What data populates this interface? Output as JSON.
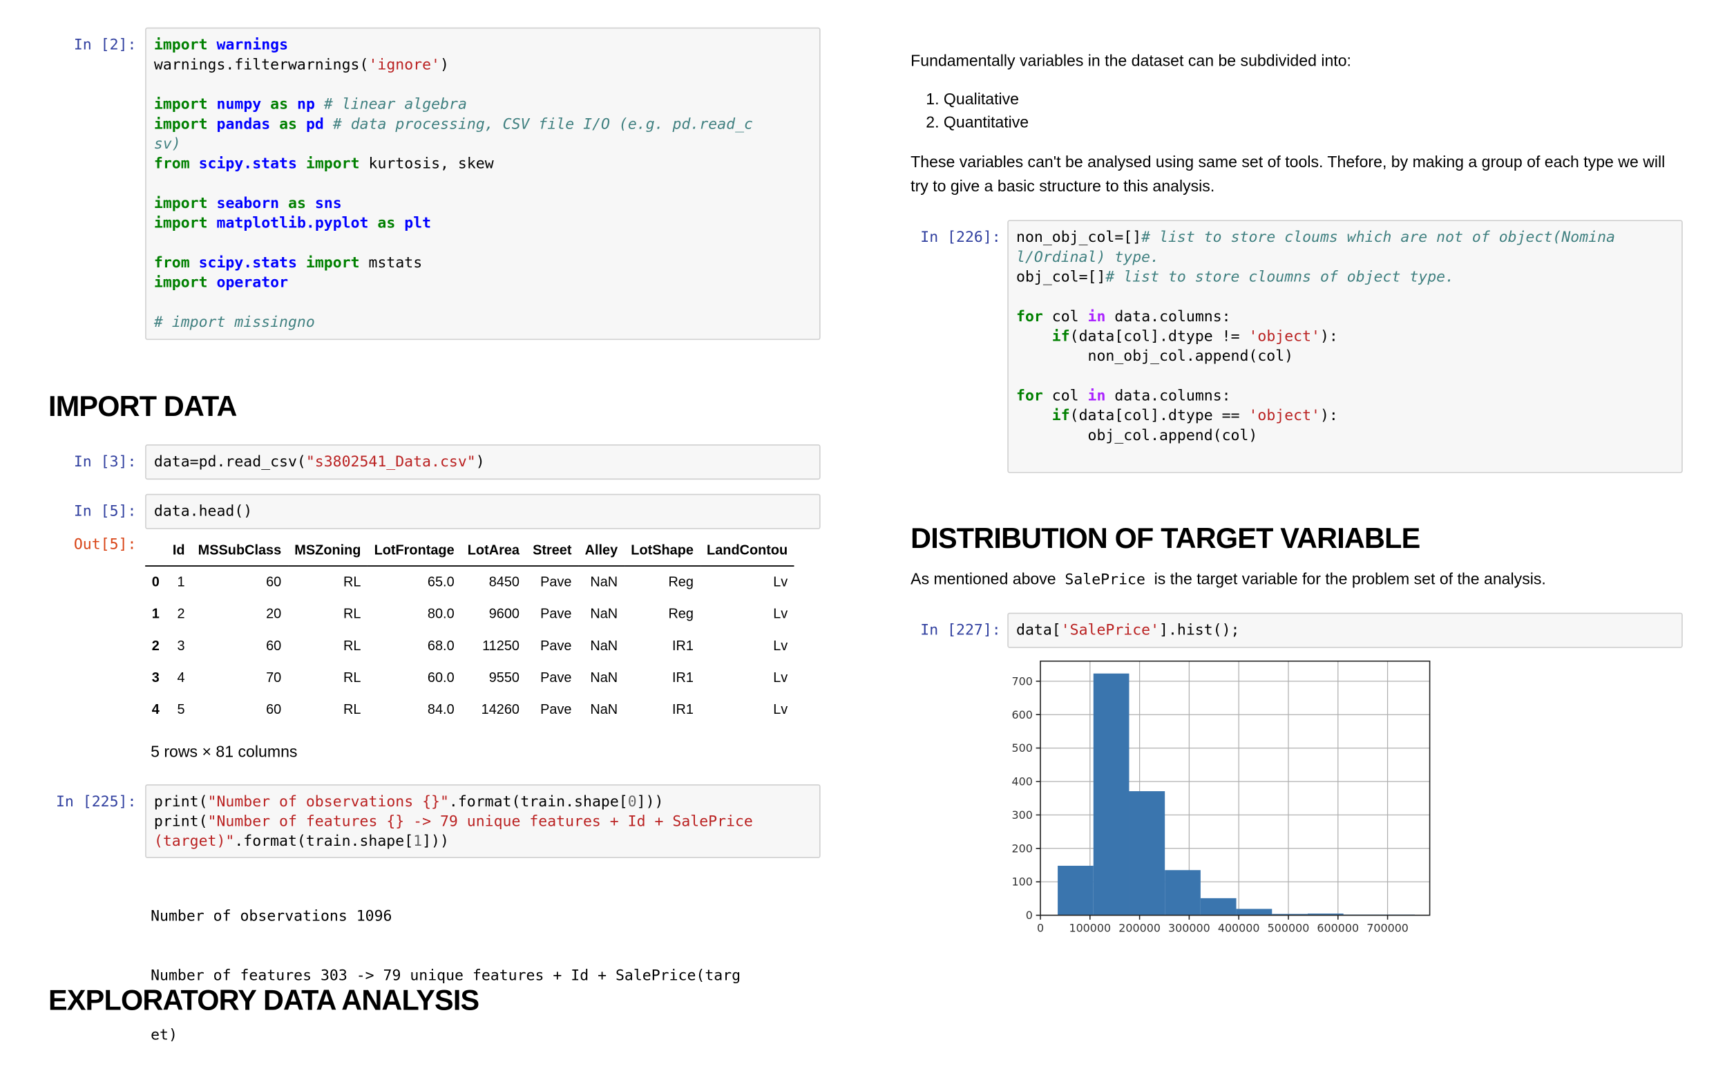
{
  "left": {
    "cell_imports": {
      "prompt": "In [2]:",
      "lines": [
        [
          {
            "t": "import",
            "c": "kw"
          },
          {
            "t": " "
          },
          {
            "t": "warnings",
            "c": "mod"
          }
        ],
        [
          {
            "t": "warnings.filterwarnings("
          },
          {
            "t": "'ignore'",
            "c": "st"
          },
          {
            "t": ")"
          }
        ],
        [],
        [
          {
            "t": "import",
            "c": "kw"
          },
          {
            "t": " "
          },
          {
            "t": "numpy",
            "c": "mod"
          },
          {
            "t": " "
          },
          {
            "t": "as",
            "c": "kw"
          },
          {
            "t": " "
          },
          {
            "t": "np",
            "c": "mod"
          },
          {
            "t": " "
          },
          {
            "t": "# linear algebra",
            "c": "cm"
          }
        ],
        [
          {
            "t": "import",
            "c": "kw"
          },
          {
            "t": " "
          },
          {
            "t": "pandas",
            "c": "mod"
          },
          {
            "t": " "
          },
          {
            "t": "as",
            "c": "kw"
          },
          {
            "t": " "
          },
          {
            "t": "pd",
            "c": "mod"
          },
          {
            "t": " "
          },
          {
            "t": "# data processing, CSV file I/O (e.g. pd.read_c",
            "c": "cm"
          }
        ],
        [
          {
            "t": "sv)",
            "c": "cm"
          }
        ],
        [
          {
            "t": "from",
            "c": "kw"
          },
          {
            "t": " "
          },
          {
            "t": "scipy.stats",
            "c": "mod"
          },
          {
            "t": " "
          },
          {
            "t": "import",
            "c": "kw"
          },
          {
            "t": " kurtosis, skew"
          }
        ],
        [],
        [
          {
            "t": "import",
            "c": "kw"
          },
          {
            "t": " "
          },
          {
            "t": "seaborn",
            "c": "mod"
          },
          {
            "t": " "
          },
          {
            "t": "as",
            "c": "kw"
          },
          {
            "t": " "
          },
          {
            "t": "sns",
            "c": "mod"
          }
        ],
        [
          {
            "t": "import",
            "c": "kw"
          },
          {
            "t": " "
          },
          {
            "t": "matplotlib.pyplot",
            "c": "mod"
          },
          {
            "t": " "
          },
          {
            "t": "as",
            "c": "kw"
          },
          {
            "t": " "
          },
          {
            "t": "plt",
            "c": "mod"
          }
        ],
        [],
        [
          {
            "t": "from",
            "c": "kw"
          },
          {
            "t": " "
          },
          {
            "t": "scipy.stats",
            "c": "mod"
          },
          {
            "t": " "
          },
          {
            "t": "import",
            "c": "kw"
          },
          {
            "t": " mstats"
          }
        ],
        [
          {
            "t": "import",
            "c": "kw"
          },
          {
            "t": " "
          },
          {
            "t": "operator",
            "c": "mod"
          }
        ],
        [],
        [
          {
            "t": "# import missingno",
            "c": "cm"
          }
        ]
      ]
    },
    "heading_import": "IMPORT DATA",
    "cell_read": {
      "prompt": "In [3]:",
      "lines": [
        [
          {
            "t": "data=pd.read_csv("
          },
          {
            "t": "\"s3802541_Data.csv\"",
            "c": "st"
          },
          {
            "t": ")"
          }
        ]
      ]
    },
    "cell_head": {
      "prompt": "In [5]:",
      "lines": [
        [
          {
            "t": "data.head()"
          }
        ]
      ]
    },
    "out_head": {
      "prompt": "Out[5]:",
      "columns": [
        "",
        "Id",
        "MSSubClass",
        "MSZoning",
        "LotFrontage",
        "LotArea",
        "Street",
        "Alley",
        "LotShape",
        "LandContou"
      ],
      "rows": [
        [
          "0",
          "1",
          "60",
          "RL",
          "65.0",
          "8450",
          "Pave",
          "NaN",
          "Reg",
          "Lv"
        ],
        [
          "1",
          "2",
          "20",
          "RL",
          "80.0",
          "9600",
          "Pave",
          "NaN",
          "Reg",
          "Lv"
        ],
        [
          "2",
          "3",
          "60",
          "RL",
          "68.0",
          "11250",
          "Pave",
          "NaN",
          "IR1",
          "Lv"
        ],
        [
          "3",
          "4",
          "70",
          "RL",
          "60.0",
          "9550",
          "Pave",
          "NaN",
          "IR1",
          "Lv"
        ],
        [
          "4",
          "5",
          "60",
          "RL",
          "84.0",
          "14260",
          "Pave",
          "NaN",
          "IR1",
          "Lv"
        ]
      ],
      "shape_note": "5 rows × 81 columns"
    },
    "cell_print": {
      "prompt": "In [225]:",
      "lines": [
        [
          {
            "t": "print("
          },
          {
            "t": "\"Number of observations {}\"",
            "c": "st"
          },
          {
            "t": ".format(train.shape["
          },
          {
            "t": "0",
            "c": "num"
          },
          {
            "t": "]))"
          }
        ],
        [
          {
            "t": "print("
          },
          {
            "t": "\"Number of features {} -> 79 unique features + Id + SalePrice",
            "c": "st"
          }
        ],
        [
          {
            "t": "(target)\"",
            "c": "st"
          },
          {
            "t": ".format(train.shape["
          },
          {
            "t": "1",
            "c": "num"
          },
          {
            "t": "]))"
          }
        ]
      ]
    },
    "print_output": [
      "Number of observations 1096",
      "Number of features 303 -> 79 unique features + Id + SalePrice(targ",
      "et)"
    ],
    "heading_eda": "EXPLORATORY DATA ANALYSIS"
  },
  "right": {
    "intro": "Fundamentally variables in the dataset can be subdivided into:",
    "list": [
      "Qualitative",
      "Quantitative"
    ],
    "para": "These variables can't be analysed using same set of tools. Thefore, by making a group of each type we will try to give a basic structure to this analysis.",
    "cell_cols": {
      "prompt": "In [226]:",
      "lines": [
        [
          {
            "t": "non_obj_col=[]"
          },
          {
            "t": "# list to store cloums which are not of object(Nomina",
            "c": "cm"
          }
        ],
        [
          {
            "t": "l/Ordinal) type.",
            "c": "cm"
          }
        ],
        [
          {
            "t": "obj_col=[]"
          },
          {
            "t": "# list to store cloumns of object type.",
            "c": "cm"
          }
        ],
        [],
        [
          {
            "t": "for",
            "c": "kw"
          },
          {
            "t": " col "
          },
          {
            "t": "in",
            "c": "kw2"
          },
          {
            "t": " data.columns:"
          }
        ],
        [
          {
            "t": "    "
          },
          {
            "t": "if",
            "c": "kw"
          },
          {
            "t": "(data[col].dtype != "
          },
          {
            "t": "'object'",
            "c": "st"
          },
          {
            "t": "):"
          }
        ],
        [
          {
            "t": "        non_obj_col.append(col)"
          }
        ],
        [],
        [
          {
            "t": "for",
            "c": "kw"
          },
          {
            "t": " col "
          },
          {
            "t": "in",
            "c": "kw2"
          },
          {
            "t": " data.columns:"
          }
        ],
        [
          {
            "t": "    "
          },
          {
            "t": "if",
            "c": "kw"
          },
          {
            "t": "(data[col].dtype == "
          },
          {
            "t": "'object'",
            "c": "st"
          },
          {
            "t": "):"
          }
        ],
        [
          {
            "t": "        obj_col.append(col)"
          }
        ]
      ]
    },
    "heading_target": "DISTRIBUTION OF TARGET VARIABLE",
    "target_text_before": "As mentioned above",
    "target_code": "SalePrice",
    "target_text_after": "is the target variable for the problem set of the analysis.",
    "cell_hist": {
      "prompt": "In [227]:",
      "lines": [
        [
          {
            "t": "data["
          },
          {
            "t": "'SalePrice'",
            "c": "st"
          },
          {
            "t": "].hist();"
          }
        ]
      ]
    }
  },
  "chart_data": {
    "type": "bar",
    "title": "",
    "xlabel": "",
    "ylabel": "",
    "bar_color": "#3a75ae",
    "grid": true,
    "xlim": [
      0,
      785000
    ],
    "ylim": [
      0,
      760
    ],
    "xticks": [
      0,
      100000,
      200000,
      300000,
      400000,
      500000,
      600000,
      700000
    ],
    "yticks": [
      0,
      100,
      200,
      300,
      400,
      500,
      600,
      700
    ],
    "bins": [
      {
        "x0": 34900,
        "x1": 106910,
        "count": 148
      },
      {
        "x0": 106910,
        "x1": 178920,
        "count": 723
      },
      {
        "x0": 178920,
        "x1": 250930,
        "count": 371
      },
      {
        "x0": 250930,
        "x1": 322940,
        "count": 135
      },
      {
        "x0": 322940,
        "x1": 394950,
        "count": 51
      },
      {
        "x0": 394950,
        "x1": 466960,
        "count": 19
      },
      {
        "x0": 466960,
        "x1": 538970,
        "count": 4
      },
      {
        "x0": 538970,
        "x1": 610980,
        "count": 5
      },
      {
        "x0": 610980,
        "x1": 682990,
        "count": 2
      },
      {
        "x0": 682990,
        "x1": 755000,
        "count": 2
      }
    ]
  }
}
